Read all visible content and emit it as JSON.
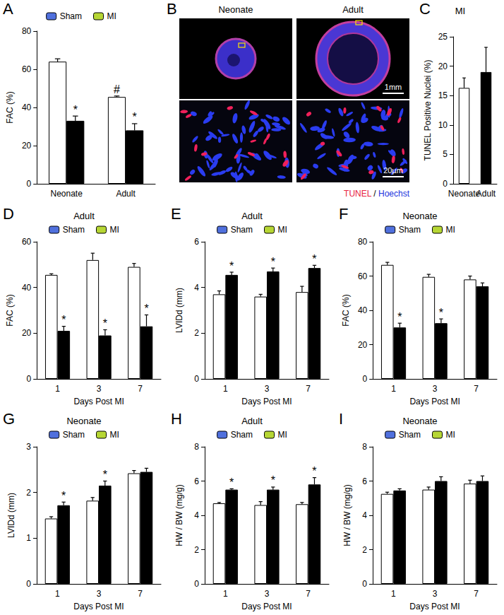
{
  "chart_data": [
    {
      "panel_label": "A",
      "type": "bar",
      "ylabel": "FAC (%)",
      "categories": [
        "Neonate",
        "Adult"
      ],
      "series": [
        {
          "name": "Sham",
          "color": "#ffffff",
          "values": [
            64,
            45.5
          ],
          "errors": [
            1.5,
            0.5
          ],
          "significance": [
            null,
            "#"
          ]
        },
        {
          "name": "MI",
          "color": "#000000",
          "values": [
            33,
            28
          ],
          "errors": [
            2.5,
            3.5
          ],
          "significance": [
            "*",
            "*"
          ]
        }
      ],
      "ylim": [
        0,
        80
      ],
      "yticks": [
        0,
        20,
        40,
        60,
        80
      ],
      "legend": "top",
      "grid": false
    },
    {
      "panel_label": "C",
      "type": "bar",
      "title": "MI",
      "ylabel": "TUNEL Positive Nuclei (%)",
      "categories": [
        "Neonate",
        "Adult"
      ],
      "values": [
        16.3,
        19
      ],
      "errors": [
        1.7,
        4.2
      ],
      "colors": [
        "#ffffff",
        "#000000"
      ],
      "ylim": [
        0,
        25
      ],
      "yticks": [
        0,
        5,
        10,
        15,
        20,
        25
      ],
      "grid": false
    },
    {
      "panel_label": "D",
      "type": "bar",
      "title": "Adult",
      "ylabel": "FAC (%)",
      "xlabel": "Days Post MI",
      "categories": [
        "1",
        "3",
        "7"
      ],
      "series": [
        {
          "name": "Sham",
          "color": "#ffffff",
          "values": [
            45.5,
            52,
            49
          ],
          "errors": [
            0.5,
            3,
            1.5
          ],
          "significance": [
            null,
            null,
            null
          ]
        },
        {
          "name": "MI",
          "color": "#000000",
          "values": [
            21,
            19,
            23
          ],
          "errors": [
            2,
            2.5,
            5
          ],
          "significance": [
            "*",
            "*",
            "*"
          ]
        }
      ],
      "ylim": [
        0,
        60
      ],
      "yticks": [
        0,
        20,
        40,
        60
      ],
      "legend": "top",
      "grid": false
    },
    {
      "panel_label": "E",
      "type": "bar",
      "title": "Adult",
      "ylabel": "LVIDd (mm)",
      "xlabel": "Days Post MI",
      "categories": [
        "1",
        "3",
        "7"
      ],
      "series": [
        {
          "name": "Sham",
          "color": "#ffffff",
          "values": [
            3.7,
            3.6,
            3.8
          ],
          "errors": [
            0.15,
            0.1,
            0.25
          ],
          "significance": [
            null,
            null,
            null
          ]
        },
        {
          "name": "MI",
          "color": "#000000",
          "values": [
            4.55,
            4.7,
            4.85
          ],
          "errors": [
            0.12,
            0.15,
            0.12
          ],
          "significance": [
            "*",
            "*",
            "*"
          ]
        }
      ],
      "ylim": [
        0,
        6
      ],
      "yticks": [
        0,
        2,
        4,
        6
      ],
      "legend": "top",
      "grid": false
    },
    {
      "panel_label": "F",
      "type": "bar",
      "title": "Neonate",
      "ylabel": "FAC (%)",
      "xlabel": "Days Post MI",
      "categories": [
        "1",
        "3",
        "7"
      ],
      "series": [
        {
          "name": "Sham",
          "color": "#ffffff",
          "values": [
            66.5,
            59.5,
            58
          ],
          "errors": [
            1.5,
            1.5,
            2
          ],
          "significance": [
            null,
            null,
            null
          ]
        },
        {
          "name": "MI",
          "color": "#000000",
          "values": [
            30,
            32.5,
            54
          ],
          "errors": [
            2.5,
            2.5,
            2
          ],
          "significance": [
            "*",
            "*",
            null
          ]
        }
      ],
      "ylim": [
        0,
        80
      ],
      "yticks": [
        0,
        20,
        40,
        60,
        80
      ],
      "legend": "top",
      "grid": false
    },
    {
      "panel_label": "G",
      "type": "bar",
      "title": "Neonate",
      "ylabel": "LVIDd (mm)",
      "xlabel": "Days Post MI",
      "categories": [
        "1",
        "3",
        "7"
      ],
      "series": [
        {
          "name": "Sham",
          "color": "#ffffff",
          "values": [
            1.43,
            1.82,
            2.42
          ],
          "errors": [
            0.04,
            0.07,
            0.06
          ],
          "significance": [
            null,
            null,
            null
          ]
        },
        {
          "name": "MI",
          "color": "#000000",
          "values": [
            1.72,
            2.15,
            2.45
          ],
          "errors": [
            0.07,
            0.1,
            0.08
          ],
          "significance": [
            "*",
            "*",
            null
          ]
        }
      ],
      "ylim": [
        0,
        3
      ],
      "yticks": [
        0,
        1,
        2,
        3
      ],
      "legend": "top",
      "grid": false
    },
    {
      "panel_label": "H",
      "type": "bar",
      "title": "Adult",
      "ylabel": "HW / BW (mg/g)",
      "xlabel": "Days Post MI",
      "categories": [
        "1",
        "3",
        "7"
      ],
      "series": [
        {
          "name": "Sham",
          "color": "#ffffff",
          "values": [
            4.7,
            4.6,
            4.65
          ],
          "errors": [
            0.05,
            0.2,
            0.1
          ],
          "significance": [
            null,
            null,
            null
          ]
        },
        {
          "name": "MI",
          "color": "#000000",
          "values": [
            5.5,
            5.5,
            5.8
          ],
          "errors": [
            0.05,
            0.15,
            0.4
          ],
          "significance": [
            "*",
            "*",
            "*"
          ]
        }
      ],
      "ylim": [
        0,
        8
      ],
      "yticks": [
        0,
        2,
        4,
        6,
        8
      ],
      "legend": "top",
      "grid": false
    },
    {
      "panel_label": "I",
      "type": "bar",
      "title": "Neonate",
      "ylabel": "HW / BW (mg/g)",
      "xlabel": "Days Post MI",
      "categories": [
        "1",
        "3",
        "7"
      ],
      "series": [
        {
          "name": "Sham",
          "color": "#ffffff",
          "values": [
            5.25,
            5.5,
            5.85
          ],
          "errors": [
            0.1,
            0.15,
            0.2
          ],
          "significance": [
            null,
            null,
            null
          ]
        },
        {
          "name": "MI",
          "color": "#000000",
          "values": [
            5.45,
            6.0,
            6.0
          ],
          "errors": [
            0.1,
            0.25,
            0.3
          ],
          "significance": [
            null,
            null,
            null
          ]
        }
      ],
      "ylim": [
        0,
        8
      ],
      "yticks": [
        0,
        2,
        4,
        6,
        8
      ],
      "legend": "top",
      "grid": false
    }
  ],
  "image_panel": {
    "panel_label": "B",
    "columns": [
      "Neonate",
      "Adult"
    ],
    "scale_bars": [
      "1mm",
      "20µm"
    ],
    "stain_label": [
      {
        "text": "TUNEL",
        "color": "#e8213f"
      },
      {
        "text": "/",
        "color": "#000000"
      },
      {
        "text": "Hoechst",
        "color": "#2233dd"
      }
    ]
  }
}
